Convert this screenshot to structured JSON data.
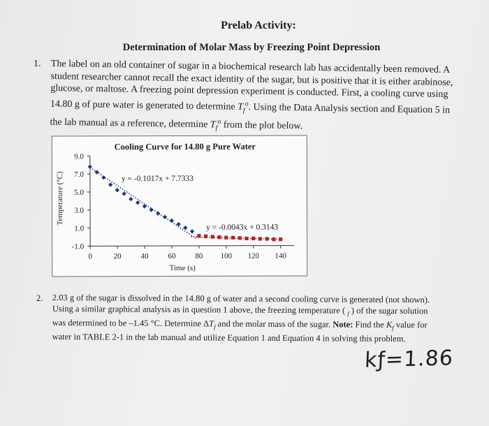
{
  "header": {
    "title": "Prelab Activity:",
    "subtitle": "Determination of Molar Mass by Freezing Point Depression"
  },
  "question1": {
    "number": "1.",
    "text_a": "The label on an old container of sugar in a biochemical research lab has accidentally been removed. A student researcher cannot recall the exact identity of the sugar, but is positive that it is either arabinose, glucose, or maltose. A freezing point depression experiment is conducted. First, a cooling curve using 14.80 g of pure water is generated to determine ",
    "text_b": ". Using the Data Analysis section and Equation 5 in the lab manual as a reference, determine ",
    "text_c": " from the plot below.",
    "symbol_T": "T",
    "symbol_sub": "f",
    "symbol_sup": "o"
  },
  "question2": {
    "number": "2.",
    "text_a": "2.03 g of the sugar is dissolved in the 14.80 g of water and a second cooling curve is generated (not shown). Using a similar graphical analysis as in question 1 above, the freezing temperature ( ",
    "text_b": " ) of the sugar solution was determined to be –1.45 °C. Determine Δ",
    "text_c": " and the molar mass of the sugar. ",
    "note_label": "Note:",
    "text_d": " Find the ",
    "text_e": " value for water in TABLE 2-1 in the lab manual and utilize Equation 1 and Equation 4 in solving this problem.",
    "K": "K",
    "handwritten": "kƒ=1.86"
  },
  "chart_data": {
    "type": "scatter",
    "title": "Cooling Curve for 14.80 g Pure Water",
    "xlabel": "Time (s)",
    "ylabel": "Temperature (°C)",
    "xlim": [
      0,
      150
    ],
    "ylim": [
      -1.0,
      9.0
    ],
    "x_ticks": [
      "0",
      "20",
      "40",
      "60",
      "80",
      "100",
      "120",
      "140"
    ],
    "y_ticks": [
      "9.0",
      "7.0",
      "5.0",
      "3.0",
      "1.0",
      "-1.0"
    ],
    "grid": false,
    "series": [
      {
        "color": "#1f3b7a",
        "marker": "diamond",
        "x": [
          0,
          5,
          10,
          15,
          20,
          25,
          30,
          35,
          40,
          45,
          50,
          55,
          60,
          65,
          70,
          75
        ],
        "y": [
          7.8,
          7.2,
          6.6,
          5.8,
          5.2,
          4.8,
          4.2,
          3.8,
          3.4,
          3.0,
          2.6,
          2.2,
          1.8,
          1.4,
          1.0,
          0.6
        ],
        "trendline": {
          "label": "y = -0.1017x + 7.7333",
          "x_range": [
            0,
            78
          ]
        }
      },
      {
        "color": "#b0242a",
        "marker": "square",
        "x": [
          80,
          85,
          90,
          95,
          100,
          105,
          110,
          115,
          120,
          125,
          130,
          135,
          140
        ],
        "y": [
          0.1,
          0.05,
          0.0,
          -0.05,
          -0.1,
          -0.1,
          -0.15,
          -0.2,
          -0.2,
          -0.25,
          -0.25,
          -0.3,
          -0.3
        ],
        "trendline": {
          "label": "y = -0.0043x + 0.3143",
          "x_range": [
            74,
            141
          ]
        }
      }
    ]
  }
}
